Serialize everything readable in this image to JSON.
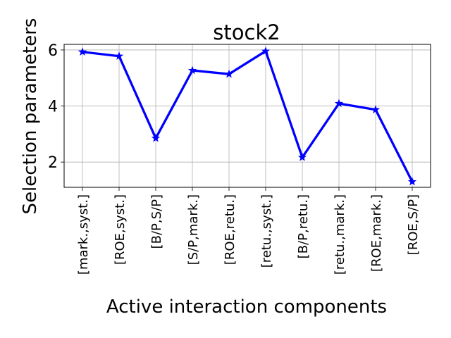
{
  "chart_data": {
    "type": "line",
    "title": "stock2",
    "xlabel": "Active interaction components",
    "ylabel": "Selection parameters",
    "categories": [
      "[mark.,syst.]",
      "[ROE,syst.]",
      "[B/P,S/P]",
      "[S/P,mark.]",
      "[ROE,retu.]",
      "[retu.,syst.]",
      "[B/P,retu.]",
      "[retu.,mark.]",
      "[ROE,mark.]",
      "[ROE,S/P]"
    ],
    "series": [
      {
        "values": [
          5.93,
          5.78,
          2.85,
          5.27,
          5.14,
          5.96,
          2.17,
          4.09,
          3.87,
          1.3
        ],
        "color": "#0000ff",
        "marker": "star"
      }
    ],
    "yticks": [
      "2",
      "4",
      "6"
    ],
    "ylim": [
      1.1,
      6.2
    ],
    "grid": true,
    "legend": "none"
  }
}
